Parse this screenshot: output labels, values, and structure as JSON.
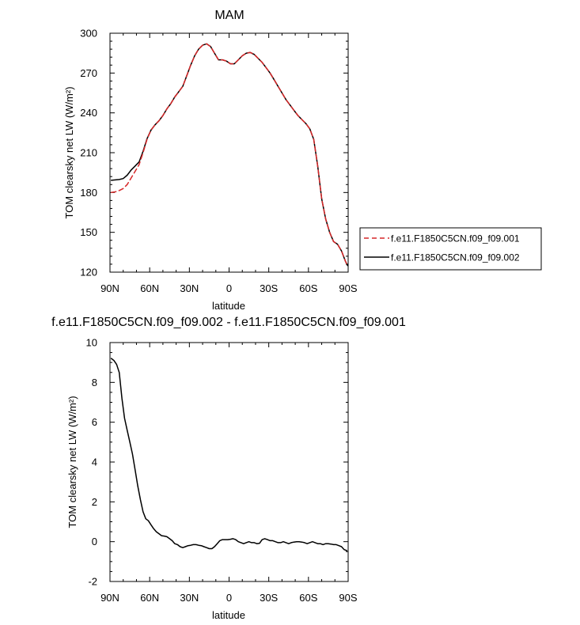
{
  "chart_data": [
    {
      "type": "line",
      "title": "MAM",
      "xlabel": "latitude",
      "ylabel": "TOM clearsky net LW (W/m²)",
      "xlim": [
        90,
        -90
      ],
      "ylim": [
        120,
        300
      ],
      "x_ticks": [
        90,
        60,
        30,
        0,
        -30,
        -60,
        -90
      ],
      "x_tick_labels": [
        "90N",
        "60N",
        "30N",
        "0",
        "30S",
        "60S",
        "90S"
      ],
      "y_ticks": [
        120,
        150,
        180,
        210,
        240,
        270,
        300
      ],
      "y_tick_labels": [
        "120",
        "150",
        "180",
        "210",
        "240",
        "270",
        "300"
      ],
      "grid": false,
      "legend": "outside-right",
      "series": [
        {
          "name": "f.e11.F1850C5CN.f09_f09.001",
          "color": "#d62728",
          "dash": "dashed",
          "x": [
            89,
            86,
            83,
            80,
            77,
            74,
            71,
            68,
            65,
            62,
            59,
            56,
            53,
            50,
            47,
            44,
            41,
            38,
            35,
            32,
            29,
            26,
            23,
            20,
            17,
            14,
            11,
            8,
            5,
            2,
            -1,
            -4,
            -7,
            -10,
            -13,
            -16,
            -19,
            -22,
            -25,
            -28,
            -31,
            -34,
            -37,
            -40,
            -43,
            -46,
            -49,
            -52,
            -55,
            -58,
            -61,
            -64,
            -67,
            -70,
            -73,
            -76,
            -79,
            -82,
            -85,
            -88,
            -89.5
          ],
          "y": [
            180,
            180.5,
            181.5,
            183,
            186,
            191,
            196,
            201,
            210,
            220,
            227,
            231,
            234,
            238,
            243,
            247,
            252,
            256,
            260,
            268,
            276,
            283,
            288,
            291,
            292,
            290,
            285,
            280,
            280,
            279,
            277,
            277,
            280,
            283,
            285,
            285.5,
            284,
            281,
            278,
            274,
            270,
            265,
            260,
            255,
            250,
            246,
            242,
            238,
            235,
            232,
            228,
            220,
            200,
            175,
            160,
            150,
            143,
            141,
            136,
            128,
            125
          ]
        },
        {
          "name": "f.e11.F1850C5CN.f09_f09.002",
          "color": "#000000",
          "dash": "solid",
          "x": [
            89,
            86,
            83,
            80,
            77,
            74,
            71,
            68,
            65,
            62,
            59,
            56,
            53,
            50,
            47,
            44,
            41,
            38,
            35,
            32,
            29,
            26,
            23,
            20,
            17,
            14,
            11,
            8,
            5,
            2,
            -1,
            -4,
            -7,
            -10,
            -13,
            -16,
            -19,
            -22,
            -25,
            -28,
            -31,
            -34,
            -37,
            -40,
            -43,
            -46,
            -49,
            -52,
            -55,
            -58,
            -61,
            -64,
            -67,
            -70,
            -73,
            -76,
            -79,
            -82,
            -85,
            -88,
            -89.5
          ],
          "y": [
            189.2,
            189.5,
            189.8,
            190.5,
            193,
            197,
            200,
            203,
            211,
            220.5,
            227,
            231,
            234,
            238,
            243,
            247,
            252,
            256,
            260,
            268,
            276,
            283,
            288,
            291,
            292,
            290,
            285,
            280,
            280,
            279,
            277,
            277,
            280,
            283,
            285,
            285.5,
            284,
            281,
            278,
            274,
            270,
            265,
            260,
            255,
            250,
            246,
            242,
            238,
            235,
            232,
            228,
            220,
            200,
            175,
            160,
            150,
            143,
            141,
            136,
            128,
            125
          ]
        }
      ]
    },
    {
      "type": "line",
      "title": "f.e11.F1850C5CN.f09_f09.002 - f.e11.F1850C5CN.f09_f09.001",
      "xlabel": "latitude",
      "ylabel": "TOM clearsky net LW (W/m²)",
      "xlim": [
        90,
        -90
      ],
      "ylim": [
        -2,
        10
      ],
      "x_ticks": [
        90,
        60,
        30,
        0,
        -30,
        -60,
        -90
      ],
      "x_tick_labels": [
        "90N",
        "60N",
        "30N",
        "0",
        "30S",
        "60S",
        "90S"
      ],
      "y_ticks": [
        -2,
        0,
        2,
        4,
        6,
        8,
        10
      ],
      "y_tick_labels": [
        "-2",
        "0",
        "2",
        "4",
        "6",
        "8",
        "10"
      ],
      "grid": false,
      "series": [
        {
          "color": "#000000",
          "dash": "solid",
          "x": [
            89,
            87,
            85,
            83,
            81,
            79,
            77,
            75,
            73,
            71,
            69,
            67,
            65,
            63,
            61,
            59,
            57,
            55,
            53,
            51,
            49,
            47,
            45,
            43,
            41,
            39,
            37,
            35,
            33,
            31,
            29,
            27,
            25,
            23,
            21,
            19,
            17,
            15,
            13,
            11,
            9,
            7,
            5,
            3,
            1,
            -1,
            -3,
            -5,
            -7,
            -9,
            -11,
            -13,
            -15,
            -17,
            -19,
            -21,
            -23,
            -25,
            -27,
            -29,
            -31,
            -33,
            -35,
            -37,
            -39,
            -41,
            -43,
            -45,
            -47,
            -49,
            -51,
            -53,
            -55,
            -57,
            -59,
            -61,
            -63,
            -65,
            -67,
            -69,
            -71,
            -73,
            -75,
            -77,
            -79,
            -81,
            -83,
            -85,
            -87,
            -89
          ],
          "y": [
            9.2,
            9.1,
            8.9,
            8.5,
            7.2,
            6.2,
            5.6,
            5.0,
            4.4,
            3.6,
            2.8,
            2.1,
            1.5,
            1.15,
            1.05,
            0.85,
            0.65,
            0.5,
            0.4,
            0.3,
            0.28,
            0.25,
            0.15,
            0.05,
            -0.1,
            -0.15,
            -0.25,
            -0.3,
            -0.25,
            -0.2,
            -0.18,
            -0.15,
            -0.15,
            -0.18,
            -0.2,
            -0.25,
            -0.3,
            -0.35,
            -0.35,
            -0.25,
            -0.1,
            0.05,
            0.1,
            0.1,
            0.1,
            0.12,
            0.15,
            0.1,
            0.0,
            -0.05,
            -0.1,
            -0.05,
            0.0,
            -0.05,
            -0.05,
            -0.1,
            -0.08,
            0.1,
            0.15,
            0.1,
            0.05,
            0.05,
            0.0,
            -0.05,
            -0.05,
            0.0,
            -0.05,
            -0.1,
            -0.05,
            -0.02,
            0.0,
            0.0,
            -0.02,
            -0.05,
            -0.1,
            -0.05,
            0.0,
            -0.05,
            -0.1,
            -0.1,
            -0.15,
            -0.1,
            -0.1,
            -0.12,
            -0.15,
            -0.15,
            -0.2,
            -0.25,
            -0.4,
            -0.45
          ]
        }
      ]
    }
  ]
}
